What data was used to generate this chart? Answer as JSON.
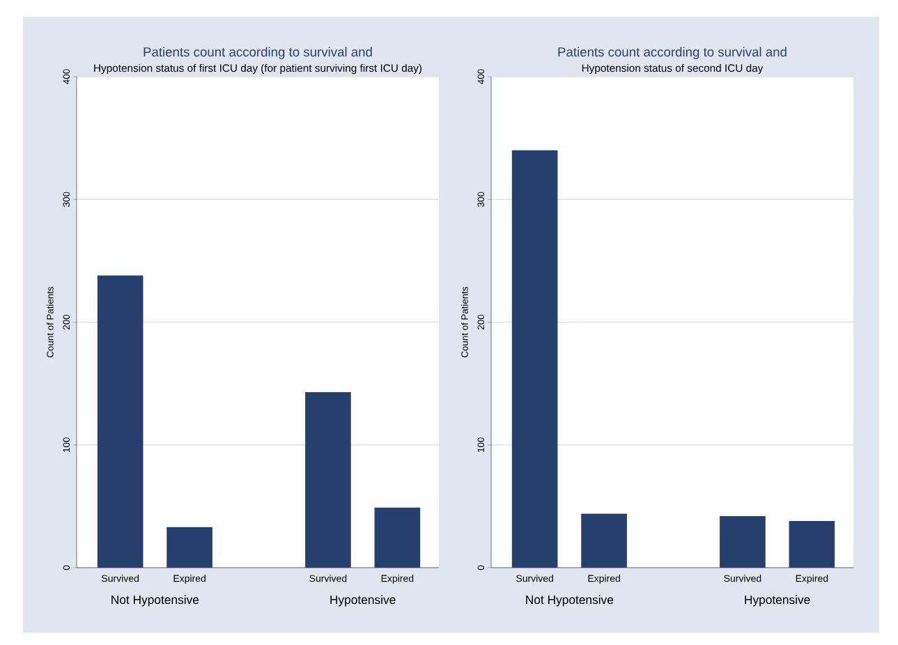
{
  "chart_data": [
    {
      "type": "bar",
      "title": "Patients count according to survival and",
      "subtitle": "Hypotension status of first ICU day  (for patient surviving first ICU day)",
      "ylabel": "Count of Patients",
      "categories": [
        "Survived",
        "Expired",
        null,
        "Survived",
        "Expired"
      ],
      "values": [
        238,
        33,
        null,
        143,
        49
      ],
      "color": "#263f6c",
      "ylim": [
        0,
        400
      ],
      "yticks": [
        0,
        100,
        200,
        300,
        400
      ],
      "grid": "y",
      "annotations": [
        "Not Hypotensive",
        "Hypotensive"
      ]
    },
    {
      "type": "bar",
      "title": "Patients count according to survival and",
      "subtitle": "Hypotension status of second ICU day",
      "ylabel": "Count of Patients",
      "categories": [
        "Survived",
        "Expired",
        null,
        "Survived",
        "Expired"
      ],
      "values": [
        340,
        44,
        null,
        42,
        38
      ],
      "color": "#263f6c",
      "ylim": [
        0,
        400
      ],
      "yticks": [
        0,
        100,
        200,
        300,
        400
      ],
      "grid": "y",
      "annotations": [
        "Not Hypotensive",
        "Hypotensive"
      ]
    }
  ]
}
